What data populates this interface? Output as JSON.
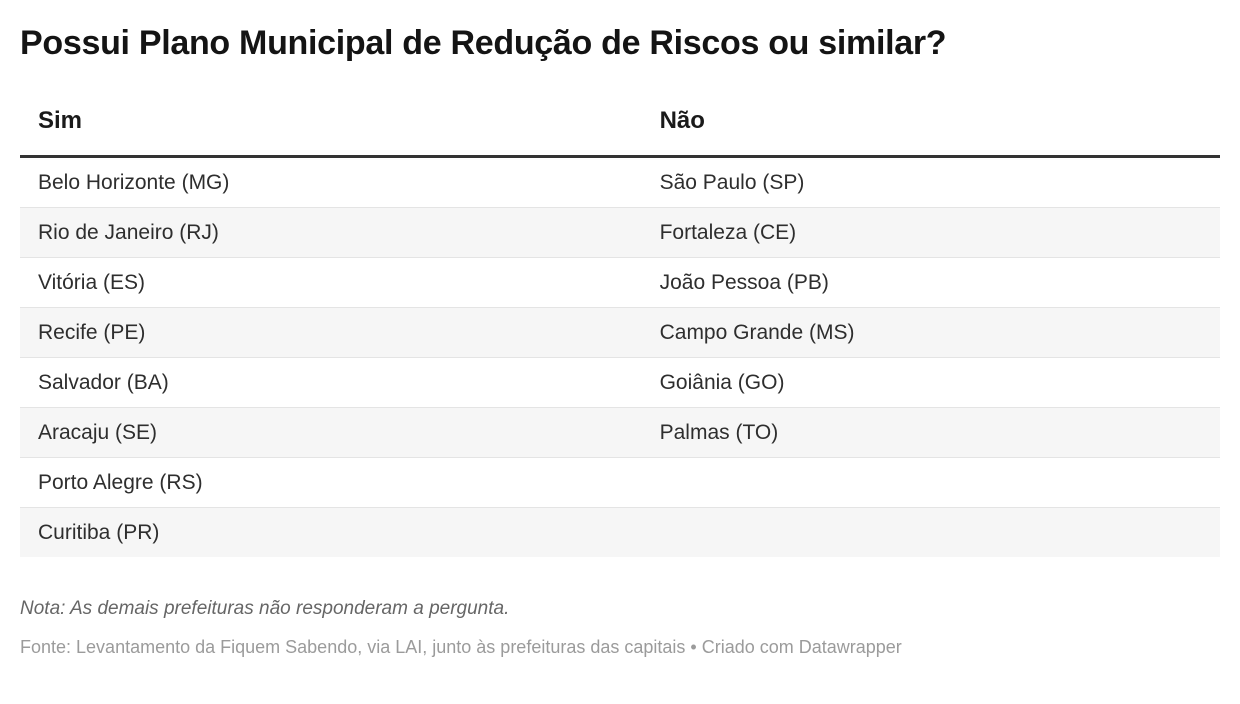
{
  "title": "Possui Plano Municipal de Redução de Riscos ou similar?",
  "chart_data": {
    "type": "table",
    "title": "Possui Plano Municipal de Redução de Riscos ou similar?",
    "columns": [
      "Sim",
      "Não"
    ],
    "rows": [
      [
        "Belo Horizonte (MG)",
        "São Paulo (SP)"
      ],
      [
        "Rio de Janeiro (RJ)",
        "Fortaleza (CE)"
      ],
      [
        "Vitória (ES)",
        "João Pessoa (PB)"
      ],
      [
        "Recife (PE)",
        "Campo Grande (MS)"
      ],
      [
        "Salvador (BA)",
        "Goiânia (GO)"
      ],
      [
        "Aracaju (SE)",
        "Palmas (TO)"
      ],
      [
        "Porto Alegre (RS)",
        ""
      ],
      [
        "Curitiba (PR)",
        ""
      ]
    ],
    "layout_hints": {
      "striped_rows": true,
      "stripe_color": "#f6f6f6",
      "header_rule_color": "#333333",
      "row_rule_color": "#e4e4e4"
    }
  },
  "footer": {
    "note": "Nota: As demais prefeituras não responderam a pergunta.",
    "source": "Fonte: Levantamento da Fiquem Sabendo, via LAI, junto às prefeituras das capitais • Criado com Datawrapper"
  },
  "colors": {
    "title_text": "#141414",
    "header_text": "#1a1a1a",
    "cell_text": "#2e2e2e",
    "note_text": "#666666",
    "source_text": "#9b9b9b",
    "background": "#ffffff"
  }
}
